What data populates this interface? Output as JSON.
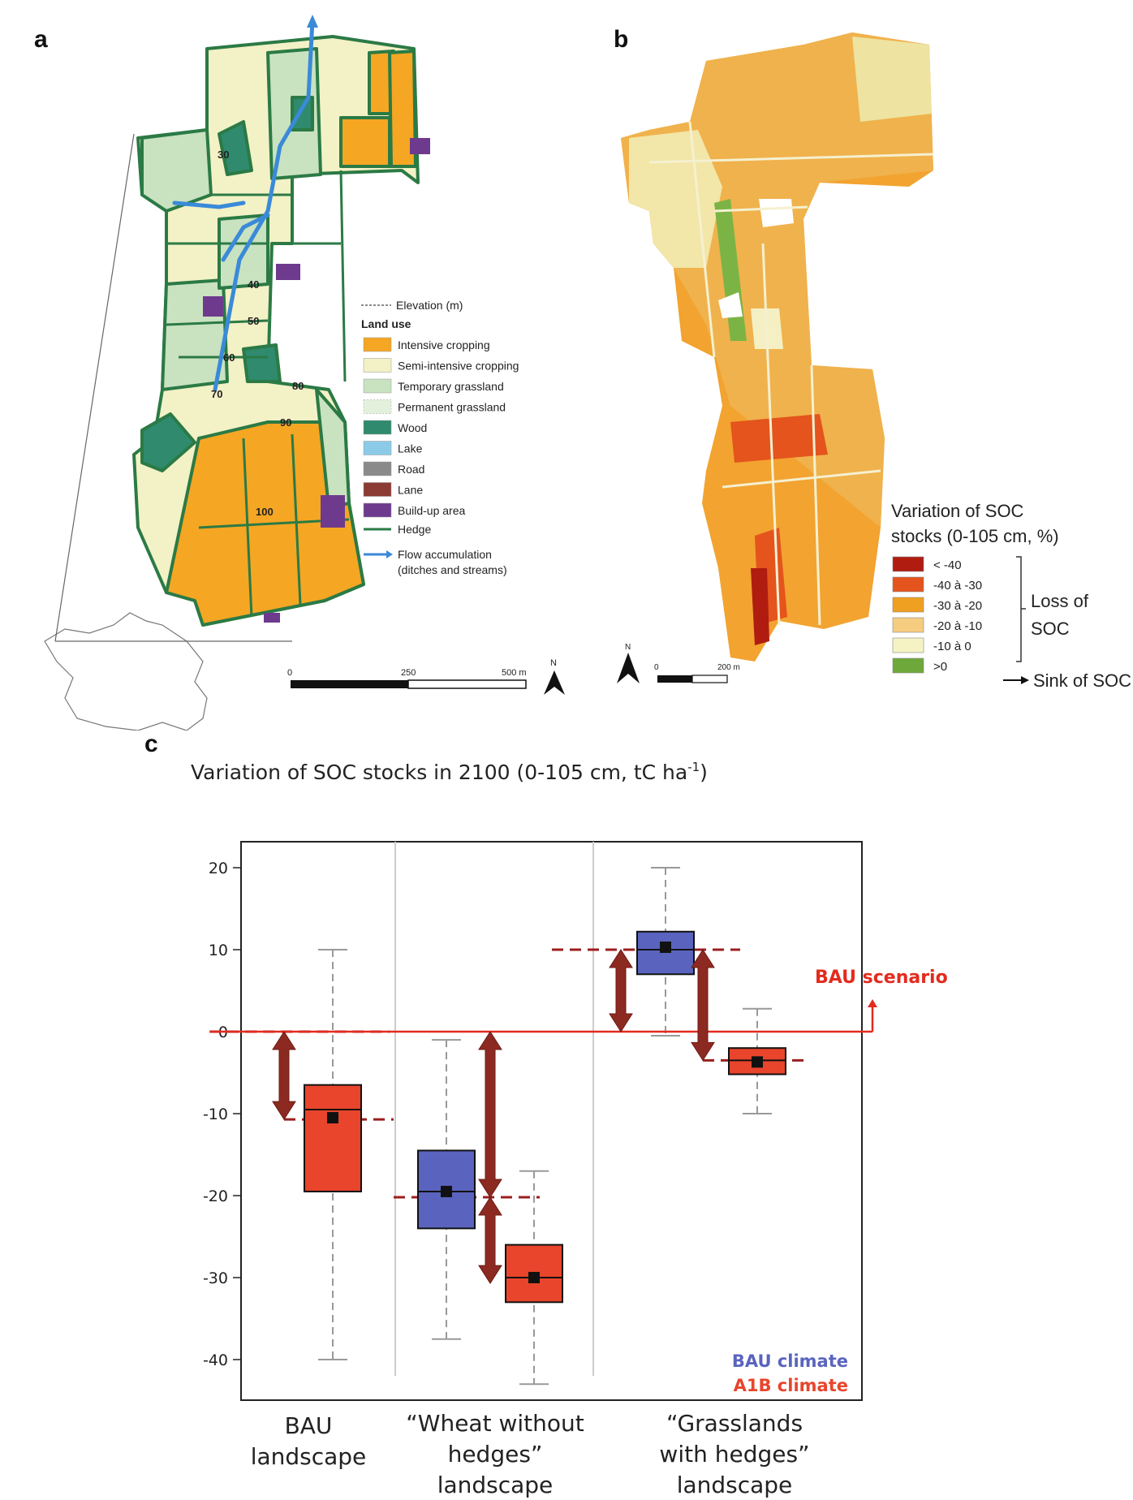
{
  "panels": {
    "a": {
      "letter": "a",
      "legend": {
        "elevation": "Elevation (m)",
        "heading": "Land use",
        "items": [
          {
            "label": "Intensive cropping",
            "color": "#f5a623"
          },
          {
            "label": "Semi-intensive cropping",
            "color": "#f3f1c6"
          },
          {
            "label": "Temporary grassland",
            "color": "#c9e2c0"
          },
          {
            "label": "Permanent grassland",
            "color": "#e3f0dc"
          },
          {
            "label": "Wood",
            "color": "#2f8a6e"
          },
          {
            "label": "Lake",
            "color": "#8ccbe8"
          },
          {
            "label": "Road",
            "color": "#8a8a8a"
          },
          {
            "label": "Lane",
            "color": "#8c3a34"
          },
          {
            "label": "Build-up area",
            "color": "#6e3a8e"
          }
        ],
        "hedge": "Hedge",
        "flow_line1": "Flow accumulation",
        "flow_line2": "(ditches and streams)"
      },
      "contours": [
        "30",
        "40",
        "50",
        "60",
        "70",
        "80",
        "90",
        "100"
      ],
      "scale": {
        "zero": "0",
        "mid": "250",
        "end": "500 m"
      },
      "north": "N"
    },
    "b": {
      "letter": "b",
      "legend_title_line1": "Variation of SOC",
      "legend_title_line2": "stocks (0-105 cm, %)",
      "classes": [
        {
          "label": "< -40",
          "color": "#b01c10"
        },
        {
          "label": "-40 à -30",
          "color": "#e4541c"
        },
        {
          "label": "-30 à -20",
          "color": "#f0a020"
        },
        {
          "label": "-20 à -10",
          "color": "#f6cc80"
        },
        {
          "label": "-10 à 0",
          "color": "#f5f2c4"
        },
        {
          "label": ">0",
          "color": "#6ea83a"
        }
      ],
      "loss_line1": "Loss of",
      "loss_line2": "SOC",
      "sink": "Sink of SOC",
      "scale": {
        "zero": "0",
        "end": "200 m"
      },
      "north": "N"
    },
    "c": {
      "letter": "c"
    }
  },
  "chart_data": {
    "type": "box",
    "title": "Variation of SOC stocks in 2100 (0-105 cm, tC ha",
    "title_sup": "-1",
    "title_end": ")",
    "ylim": [
      -45,
      23
    ],
    "yticks": [
      "20",
      "10",
      "0",
      "-10",
      "-20",
      "-30",
      "-40"
    ],
    "ytick_values": [
      20,
      10,
      0,
      -10,
      -20,
      -30,
      -40
    ],
    "categories": [
      {
        "line1": "BAU",
        "line2": "landscape",
        "line3": ""
      },
      {
        "line1": "“Wheat without",
        "line2": "hedges”",
        "line3": "landscape"
      },
      {
        "line1": "“Grasslands",
        "line2": "with hedges”",
        "line3": "landscape"
      }
    ],
    "series": [
      {
        "name": "BAU climate",
        "color": "#5a64be"
      },
      {
        "name": "A1B climate",
        "color": "#e8452c"
      }
    ],
    "boxes": [
      {
        "category": 0,
        "series": "A1B climate",
        "whisker_low": -40,
        "q1": -19.5,
        "median": -9.5,
        "q3": -6.5,
        "whisker_high": 10,
        "mean": -10.5
      },
      {
        "category": 1,
        "series": "BAU climate",
        "whisker_low": -37.5,
        "q1": -24,
        "median": -19.5,
        "q3": -14.5,
        "whisker_high": -1,
        "mean": -19.5
      },
      {
        "category": 1,
        "series": "A1B climate",
        "whisker_low": -43,
        "q1": -33,
        "median": -30,
        "q3": -26,
        "whisker_high": -17,
        "mean": -30
      },
      {
        "category": 2,
        "series": "BAU climate",
        "whisker_low": -0.5,
        "q1": 7,
        "median": 10,
        "q3": 12.2,
        "whisker_high": 20,
        "mean": 10.3
      },
      {
        "category": 2,
        "series": "A1B climate",
        "whisker_low": -10,
        "q1": -5.2,
        "median": -3.5,
        "q3": -2,
        "whisker_high": 2.8,
        "mean": -3.7
      }
    ],
    "bau_line": {
      "value": 0,
      "label": "BAU scenario"
    },
    "dashed_levels": [
      {
        "value": 0,
        "from": 0.05,
        "to": 0.5
      },
      {
        "value": -10.7,
        "from": 0.3,
        "to": 1.0
      },
      {
        "value": -20.2,
        "from": 1.0,
        "to": 1.5
      },
      {
        "value": -30.7,
        "from": 1.4,
        "to": 2.0
      },
      {
        "value": 10,
        "from": 2.0,
        "to": 2.8
      },
      {
        "value": -3.5,
        "from": 2.55,
        "to": 3.05
      }
    ],
    "arrows": [
      {
        "x": 0.3,
        "from": 0,
        "to": -10.7
      },
      {
        "x": 1.25,
        "from": 0,
        "to": -20.2
      },
      {
        "x": 1.25,
        "from": -20.2,
        "to": -30.7
      },
      {
        "x": 2.1,
        "from": 0,
        "to": 10
      },
      {
        "x": 2.55,
        "from": 10,
        "to": -3.5
      }
    ]
  }
}
